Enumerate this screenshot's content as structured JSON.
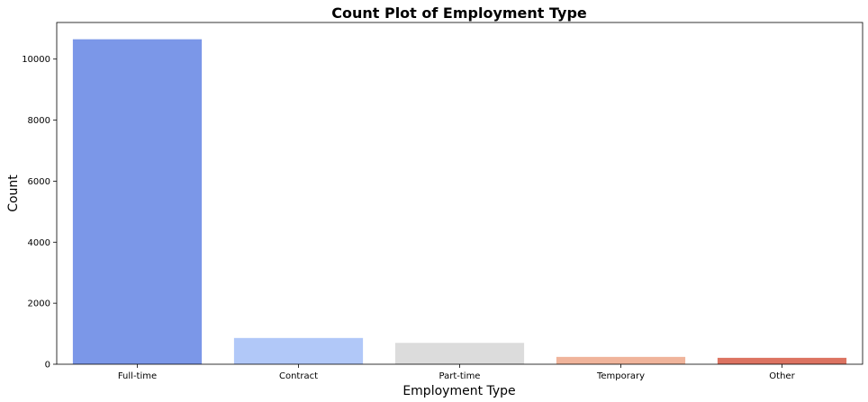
{
  "chart_data": {
    "type": "bar",
    "title": "Count Plot of Employment Type",
    "xlabel": "Employment Type",
    "ylabel": "Count",
    "categories": [
      "Full-time",
      "Contract",
      "Part-time",
      "Temporary",
      "Other"
    ],
    "values": [
      10650,
      860,
      700,
      240,
      210
    ],
    "colors": [
      "#7b97e8",
      "#b1c8f8",
      "#dcdcdc",
      "#f0b49b",
      "#dc7361"
    ],
    "ylim": [
      0,
      11200
    ],
    "yticks": [
      0,
      2000,
      4000,
      6000,
      8000,
      10000
    ],
    "ytick_labels": [
      "0",
      "2000",
      "4000",
      "6000",
      "8000",
      "10000"
    ],
    "grid": false,
    "legend": "none"
  }
}
